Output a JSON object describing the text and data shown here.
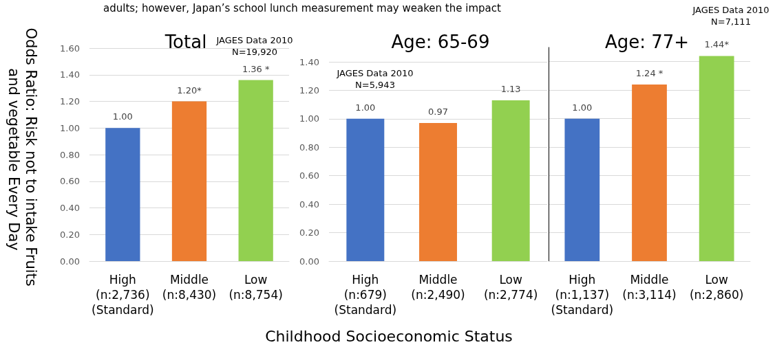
{
  "chart_data": [
    {
      "type": "bar",
      "title": "Total",
      "subtitle": "adults; however, Japan’s school lunch measurement may weaken the impact",
      "ylabel": "Odds Ratio: Risk not to intake Fruits and vegetable Every Day",
      "annotations": [
        "JAGES Data 2010\nN=19,920"
      ],
      "categories": [
        "High\n(n:2,736)\n(Standard)",
        "Middle\n(n:8,430)",
        "Low\n(n:8,754)"
      ],
      "values": [
        1.0,
        1.2,
        1.36
      ],
      "colors": [
        "#4472c4",
        "#ed7d31",
        "#92d050"
      ],
      "value_labels": [
        "1.00",
        "1.20*",
        "1.36 *"
      ],
      "ylim": [
        0,
        1.6
      ],
      "yticks": [
        {
          "value": 0,
          "label": "0.00"
        },
        {
          "value": 0.2,
          "label": "0.20"
        },
        {
          "value": 0.4,
          "label": "0.40"
        },
        {
          "value": 0.6,
          "label": "0.60"
        },
        {
          "value": 0.8,
          "label": "0.80"
        },
        {
          "value": 1,
          "label": "1.00"
        },
        {
          "value": 1.2,
          "label": "1.20"
        },
        {
          "value": 1.4,
          "label": "1.40"
        },
        {
          "value": 1.6,
          "label": "1.60"
        }
      ],
      "grid": "y"
    },
    {
      "type": "bar",
      "title": "Age: 65-69",
      "xlabel": "Childhood Socioeconomic Status",
      "annotations": [
        "JAGES Data 2010\nN=5,943"
      ],
      "categories": [
        "High\n(n:679)\n(Standard)",
        "Middle\n(n:2,490)",
        "Low\n(n:2,774)"
      ],
      "values": [
        1.0,
        0.97,
        1.13
      ],
      "colors": [
        "#4472c4",
        "#ed7d31",
        "#92d050"
      ],
      "value_labels": [
        "1.00",
        "0.97",
        "1.13"
      ],
      "ylim": [
        0,
        1.4
      ],
      "yticks": [
        {
          "value": 0,
          "label": "0.00"
        },
        {
          "value": 0.2,
          "label": "0.20"
        },
        {
          "value": 0.4,
          "label": "0.40"
        },
        {
          "value": 0.6,
          "label": "0.60"
        },
        {
          "value": 0.8,
          "label": "0.80"
        },
        {
          "value": 1,
          "label": "1.00"
        },
        {
          "value": 1.2,
          "label": "1.20"
        },
        {
          "value": 1.4,
          "label": "1.40"
        }
      ],
      "grid": "y"
    },
    {
      "type": "bar",
      "title": "Age: 77+",
      "annotations": [
        "JAGES Data 2010\nN=7,111"
      ],
      "categories": [
        "High\n(n:1,137)\n(Standard)",
        "Middle\n(n:3,114)",
        "Low\n(n:2,860)"
      ],
      "values": [
        1.0,
        1.24,
        1.44
      ],
      "colors": [
        "#4472c4",
        "#ed7d31",
        "#92d050"
      ],
      "value_labels": [
        "1.00",
        "1.24 *",
        "1.44*"
      ],
      "ylim": [
        0,
        1.5
      ],
      "yticks": [
        0,
        0.2,
        0.4,
        0.6,
        0.8,
        1,
        1.2,
        1.4
      ],
      "grid": "y",
      "tick_labels": "x"
    }
  ]
}
